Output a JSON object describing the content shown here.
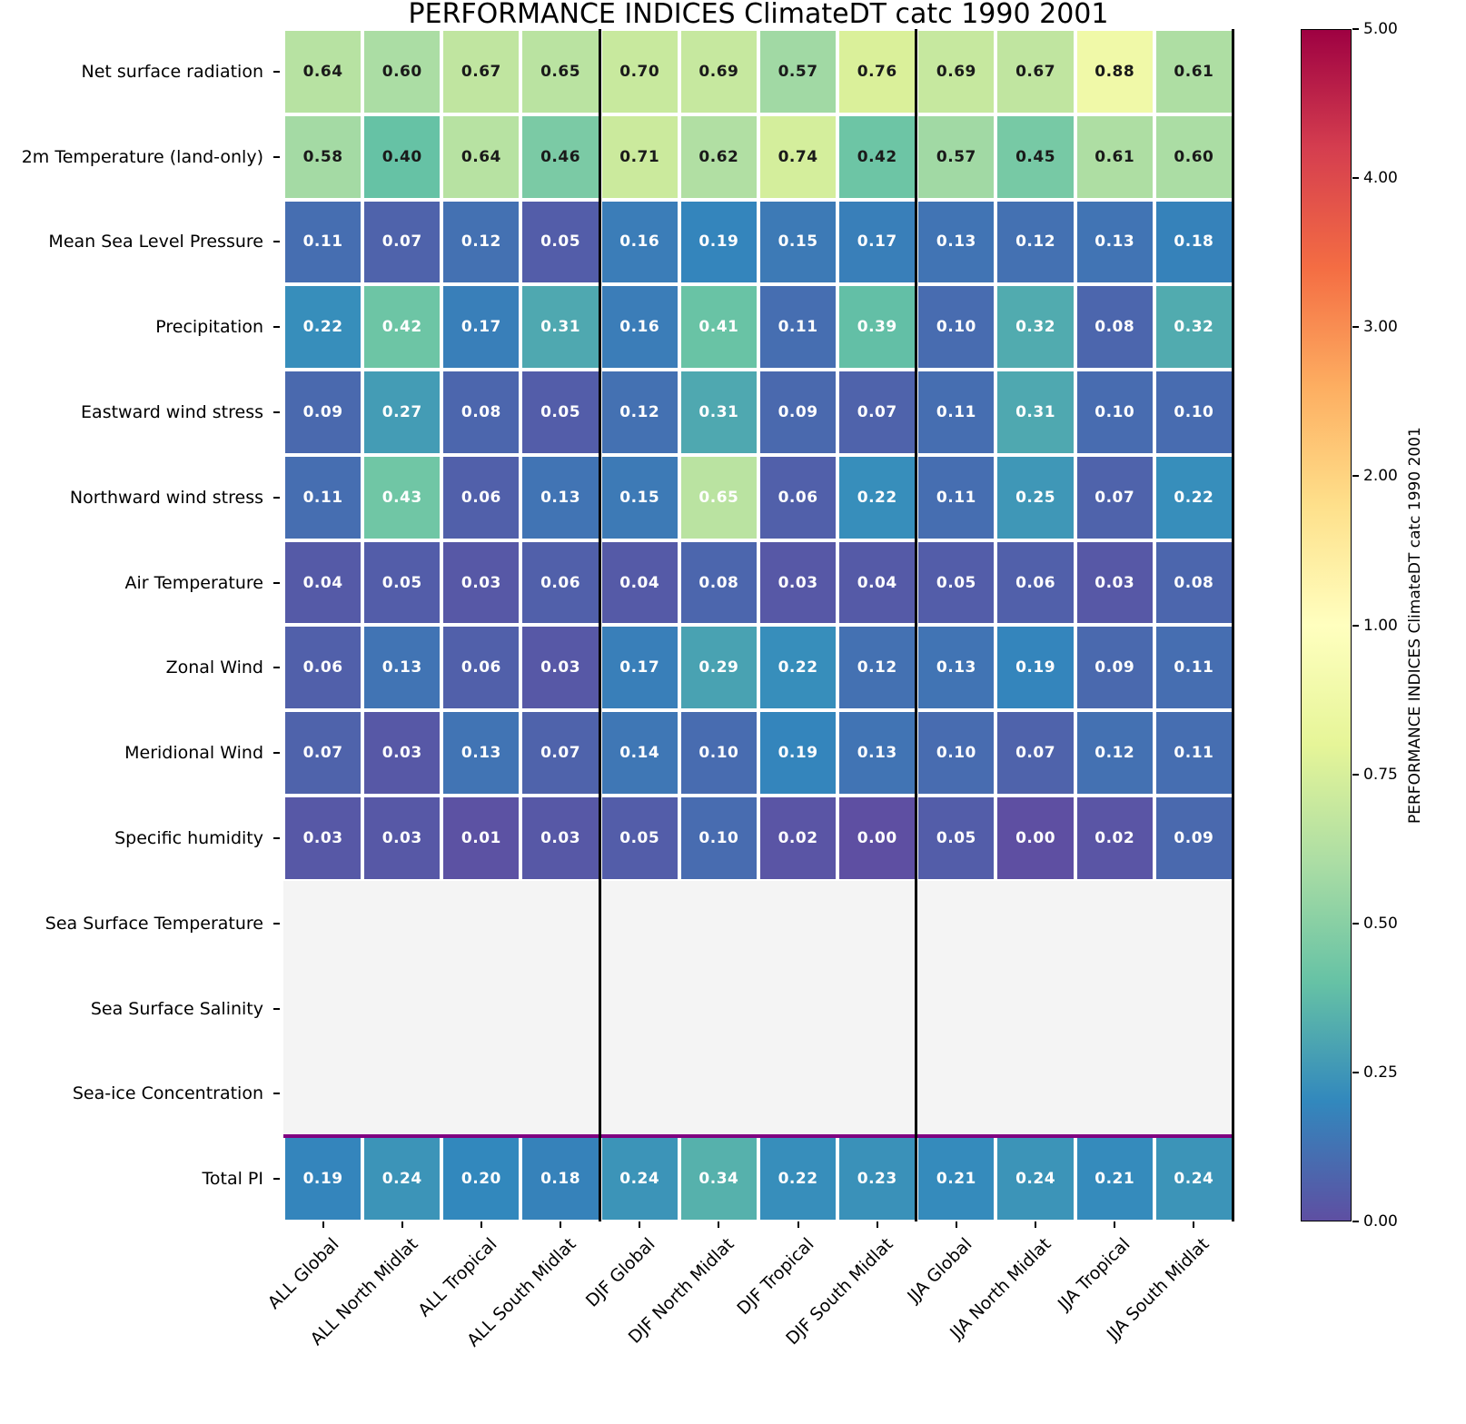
{
  "title": "PERFORMANCE INDICES ClimateDT catc 1990 2001",
  "chart_data": {
    "type": "heatmap",
    "title": "PERFORMANCE INDICES ClimateDT catc 1990 2001",
    "columns": [
      "ALL Global",
      "ALL North Midlat",
      "ALL Tropical",
      "ALL South Midlat",
      "DJF Global",
      "DJF North Midlat",
      "DJF Tropical",
      "DJF South Midlat",
      "JJA Global",
      "JJA North Midlat",
      "JJA Tropical",
      "JJA South Midlat"
    ],
    "rows": [
      {
        "label": "Net surface radiation",
        "values": [
          0.64,
          0.6,
          0.67,
          0.65,
          0.7,
          0.69,
          0.57,
          0.76,
          0.69,
          0.67,
          0.88,
          0.61
        ],
        "annot_color": "#1a1a1a"
      },
      {
        "label": "2m Temperature (land-only)",
        "values": [
          0.58,
          0.4,
          0.64,
          0.46,
          0.71,
          0.62,
          0.74,
          0.42,
          0.57,
          0.45,
          0.61,
          0.6
        ],
        "annot_color": "#1a1a1a"
      },
      {
        "label": "Mean Sea Level Pressure",
        "values": [
          0.11,
          0.07,
          0.12,
          0.05,
          0.16,
          0.19,
          0.15,
          0.17,
          0.13,
          0.12,
          0.13,
          0.18
        ],
        "annot_color": "#ffffff"
      },
      {
        "label": "Precipitation",
        "values": [
          0.22,
          0.42,
          0.17,
          0.31,
          0.16,
          0.41,
          0.11,
          0.39,
          0.1,
          0.32,
          0.08,
          0.32
        ],
        "annot_color": "#ffffff"
      },
      {
        "label": "Eastward wind stress",
        "values": [
          0.09,
          0.27,
          0.08,
          0.05,
          0.12,
          0.31,
          0.09,
          0.07,
          0.11,
          0.31,
          0.1,
          0.1
        ],
        "annot_color": "#ffffff"
      },
      {
        "label": "Northward wind stress",
        "values": [
          0.11,
          0.43,
          0.06,
          0.13,
          0.15,
          0.65,
          0.06,
          0.22,
          0.11,
          0.25,
          0.07,
          0.22
        ],
        "annot_color": "#ffffff"
      },
      {
        "label": "Air Temperature",
        "values": [
          0.04,
          0.05,
          0.03,
          0.06,
          0.04,
          0.08,
          0.03,
          0.04,
          0.05,
          0.06,
          0.03,
          0.08
        ],
        "annot_color": "#ffffff"
      },
      {
        "label": "Zonal Wind",
        "values": [
          0.06,
          0.13,
          0.06,
          0.03,
          0.17,
          0.29,
          0.22,
          0.12,
          0.13,
          0.19,
          0.09,
          0.11
        ],
        "annot_color": "#ffffff"
      },
      {
        "label": "Meridional Wind",
        "values": [
          0.07,
          0.03,
          0.13,
          0.07,
          0.14,
          0.1,
          0.19,
          0.13,
          0.1,
          0.07,
          0.12,
          0.11
        ],
        "annot_color": "#ffffff"
      },
      {
        "label": "Specific humidity",
        "values": [
          0.03,
          0.03,
          0.01,
          0.03,
          0.05,
          0.1,
          0.02,
          0.0,
          0.05,
          0.0,
          0.02,
          0.09
        ],
        "annot_color": "#ffffff"
      },
      {
        "label": "Sea Surface Temperature",
        "values": null
      },
      {
        "label": "Sea Surface Salinity",
        "values": null
      },
      {
        "label": "Sea-ice Concentration",
        "values": null
      },
      {
        "label": "Total PI",
        "values": [
          0.19,
          0.24,
          0.2,
          0.18,
          0.24,
          0.34,
          0.22,
          0.23,
          0.21,
          0.24,
          0.21,
          0.24
        ],
        "annot_color": "#ffffff"
      }
    ],
    "group_separators_after_columns": [
      4,
      8,
      12
    ],
    "total_row_separator_color": "#800080",
    "empty_cell_color": "#f4f4f4",
    "colormap": {
      "name": "Spectral_r",
      "norm": {
        "vmin": 0,
        "pivot_value": 1,
        "pivot_position": 0.5,
        "vmax": 5
      },
      "stops": [
        [
          0.0,
          "#5e4fa2"
        ],
        [
          0.1,
          "#3288bd"
        ],
        [
          0.2,
          "#66c2a5"
        ],
        [
          0.3,
          "#abdda4"
        ],
        [
          0.4,
          "#e6f598"
        ],
        [
          0.5,
          "#ffffbf"
        ],
        [
          0.6,
          "#fee08b"
        ],
        [
          0.7,
          "#fdae61"
        ],
        [
          0.8,
          "#f46d43"
        ],
        [
          0.9,
          "#d53e4f"
        ],
        [
          1.0,
          "#9e0142"
        ]
      ]
    },
    "colorbar": {
      "label": "PERFORMANCE INDICES ClimateDT catc 1990 2001",
      "ticks": [
        "0.00",
        "0.25",
        "0.50",
        "0.75",
        "1.00",
        "2.00",
        "3.00",
        "4.00",
        "5.00"
      ]
    }
  }
}
